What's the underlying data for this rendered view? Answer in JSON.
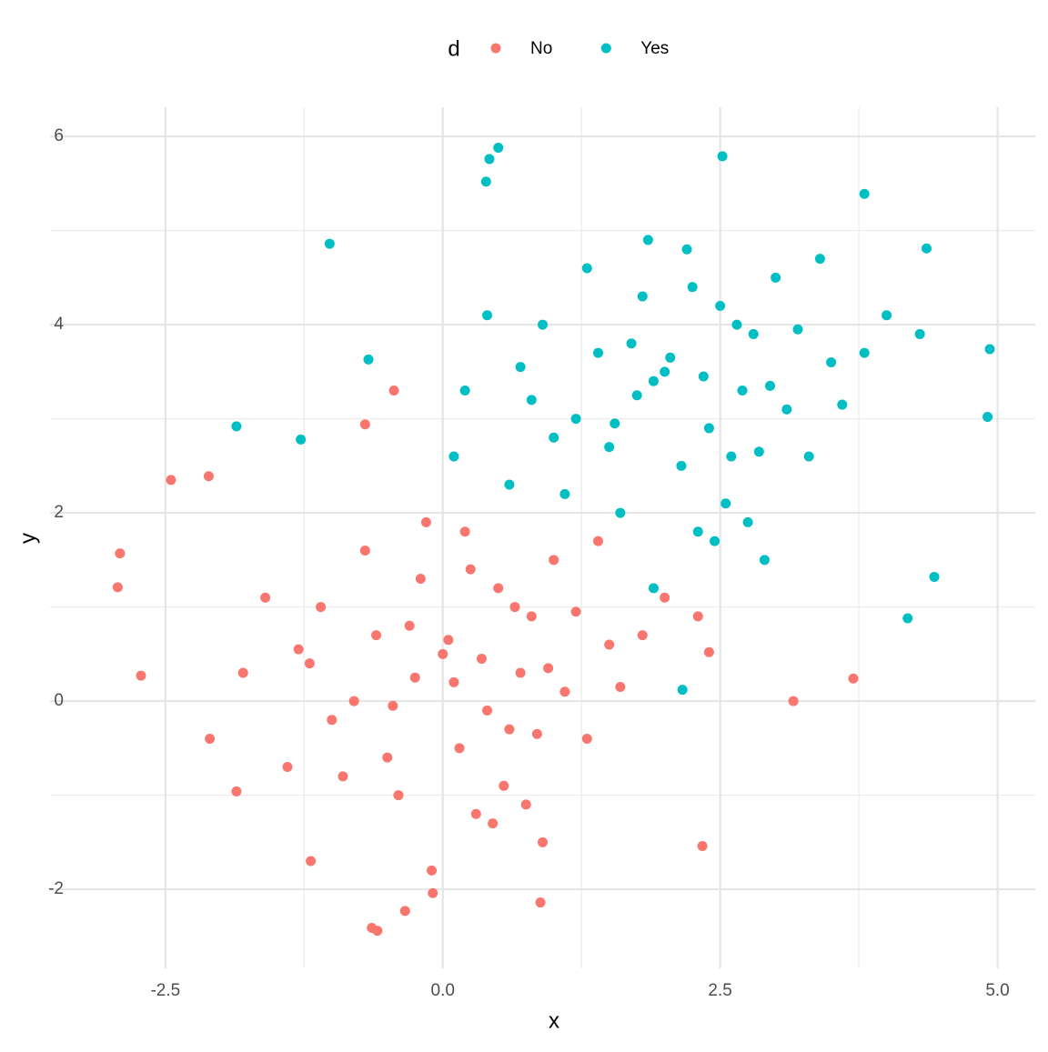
{
  "chart_data": {
    "type": "scatter",
    "x_label": "x",
    "y_label": "y",
    "legend_title": "d",
    "legend_position": "top",
    "xlim": [
      -3.54,
      5.34
    ],
    "ylim": [
      -2.84,
      6.31
    ],
    "xticks": [
      {
        "value": -2.5,
        "label": "-2.5"
      },
      {
        "value": 0,
        "label": "0.0"
      },
      {
        "value": 2.5,
        "label": "2.5"
      },
      {
        "value": 5,
        "label": "5.0"
      }
    ],
    "yticks": [
      -2,
      0,
      2,
      4,
      6
    ],
    "xminor": [
      -1.25,
      1.25,
      3.75
    ],
    "yminor": [
      -1,
      1,
      3,
      5
    ],
    "grid": true,
    "series": [
      {
        "name": "No",
        "color": "#F8766D",
        "x": [
          0.1,
          -0.5,
          0.8,
          -1.2,
          0.3,
          1.1,
          -0.2,
          0.6,
          -0.9,
          1.5,
          0.0,
          -1.6,
          0.4,
          0.9,
          -0.3,
          -0.7,
          1.3,
          0.2,
          -1.0,
          0.7,
          1.8,
          -0.4,
          0.5,
          -1.4,
          0.15,
          1.0,
          -0.8,
          0.35,
          -0.1,
          1.2,
          -1.8,
          0.55,
          2.0,
          -0.6,
          0.25,
          -1.1,
          0.85,
          1.6,
          -0.25,
          0.45,
          -2.1,
          0.05,
          1.4,
          -0.45,
          0.75,
          -1.3,
          0.95,
          -0.15,
          2.3,
          0.65,
          -2.91,
          -2.93,
          -2.72,
          -2.45,
          -2.11,
          -0.44,
          -0.7,
          -0.59,
          -0.64,
          0.88,
          2.34,
          3.16,
          3.7,
          2.4,
          -0.34,
          -0.09,
          -1.19,
          -1.86
        ],
        "y": [
          0.2,
          -0.6,
          0.9,
          0.4,
          -1.2,
          0.1,
          1.3,
          -0.3,
          -0.8,
          0.6,
          0.5,
          1.1,
          -0.1,
          -1.5,
          0.8,
          1.6,
          -0.4,
          1.8,
          -0.2,
          0.3,
          0.7,
          -1.0,
          1.2,
          -0.7,
          -0.5,
          1.5,
          0.0,
          0.45,
          -1.8,
          0.95,
          0.3,
          -0.9,
          1.1,
          0.7,
          1.4,
          1.0,
          -0.35,
          0.15,
          0.25,
          -1.3,
          -0.4,
          0.65,
          1.7,
          -0.05,
          -1.1,
          0.55,
          0.35,
          1.9,
          0.9,
          1.0,
          1.57,
          1.21,
          0.27,
          2.35,
          2.39,
          3.3,
          2.94,
          -2.44,
          -2.41,
          -2.14,
          -1.54,
          0.0,
          0.24,
          0.52,
          -2.23,
          -2.04,
          -1.7,
          -0.96
        ]
      },
      {
        "name": "Yes",
        "color": "#00BFC4",
        "x": [
          1.9,
          1.5,
          2.8,
          0.8,
          2.3,
          3.1,
          1.8,
          2.6,
          1.1,
          3.5,
          2.0,
          0.4,
          2.4,
          2.9,
          1.7,
          1.3,
          3.3,
          2.2,
          1.0,
          2.7,
          3.8,
          1.6,
          2.5,
          0.6,
          2.15,
          3.0,
          1.2,
          2.35,
          1.9,
          3.2,
          0.2,
          2.55,
          4.0,
          1.4,
          2.25,
          0.9,
          2.85,
          3.6,
          1.75,
          2.45,
          0.1,
          2.05,
          3.4,
          1.55,
          2.75,
          0.7,
          2.95,
          1.85,
          4.3,
          2.65,
          0.5,
          0.42,
          0.39,
          -1.02,
          2.52,
          4.93,
          4.91,
          4.43,
          4.19,
          3.8,
          -1.86,
          -1.28,
          -0.67,
          2.16,
          4.36
        ],
        "y": [
          3.4,
          2.7,
          3.9,
          3.2,
          1.8,
          3.1,
          4.3,
          2.6,
          2.2,
          3.6,
          3.5,
          4.1,
          2.9,
          1.5,
          3.8,
          4.6,
          2.6,
          4.8,
          2.8,
          3.3,
          3.7,
          2.0,
          4.2,
          2.3,
          2.5,
          4.5,
          3.0,
          3.45,
          1.2,
          3.95,
          3.3,
          2.1,
          4.1,
          3.7,
          4.4,
          4.0,
          2.65,
          3.15,
          3.25,
          1.7,
          2.6,
          3.65,
          4.7,
          2.95,
          1.9,
          3.55,
          3.35,
          4.9,
          3.9,
          4.0,
          5.88,
          5.76,
          5.52,
          4.86,
          5.79,
          3.74,
          3.02,
          1.32,
          0.88,
          5.39,
          2.92,
          2.78,
          3.63,
          0.12,
          4.81
        ]
      }
    ]
  }
}
